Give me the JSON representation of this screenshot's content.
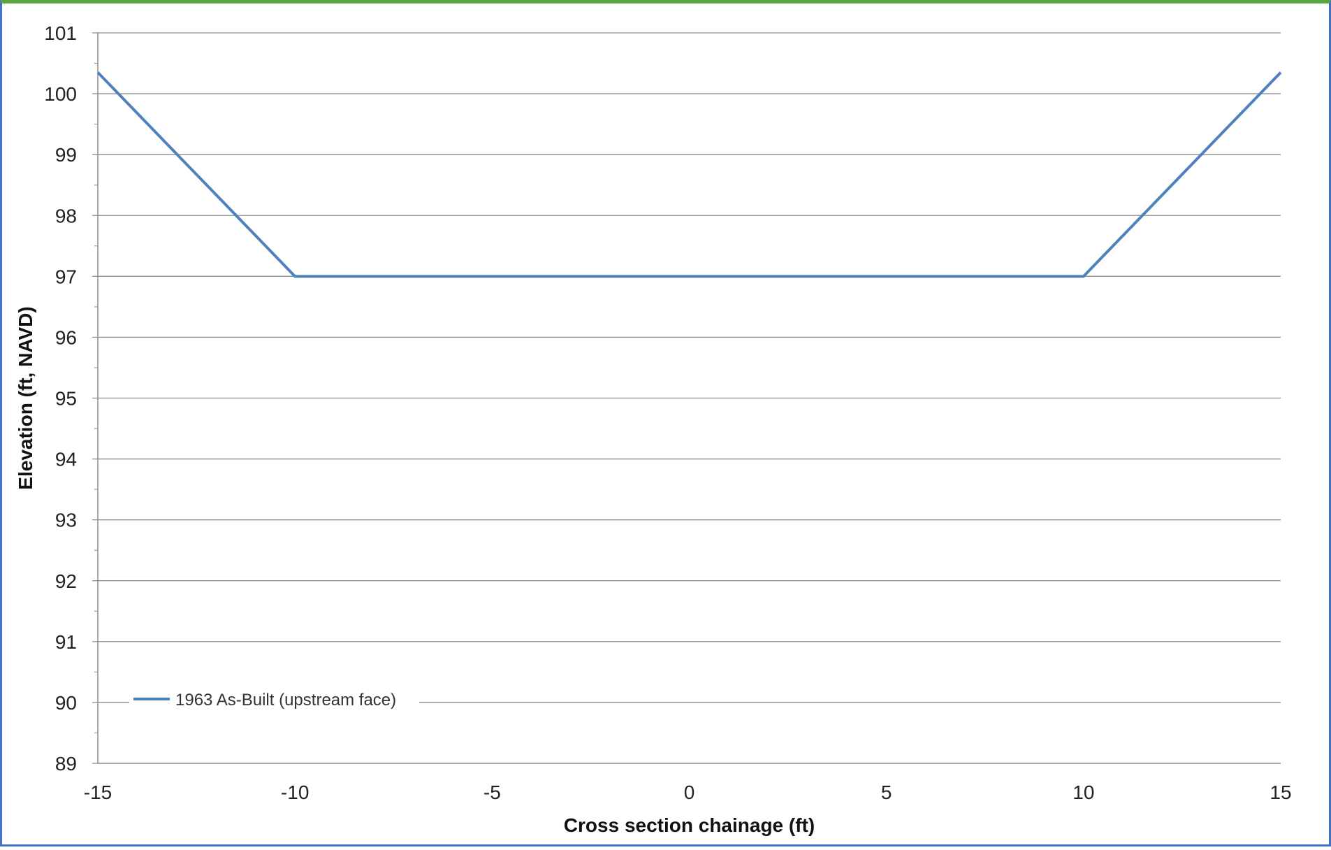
{
  "chart_data": {
    "type": "line",
    "title": "",
    "xlabel": "Cross section chainage (ft)",
    "ylabel": "Elevation (ft, NAVD)",
    "xlim": [
      -15,
      15
    ],
    "ylim": [
      89,
      101
    ],
    "x_ticks": [
      "-15",
      "-10",
      "-5",
      "0",
      "5",
      "10",
      "15"
    ],
    "y_ticks": [
      "101",
      "100",
      "99",
      "98",
      "97",
      "96",
      "95",
      "94",
      "93",
      "92",
      "91",
      "90",
      "89"
    ],
    "grid": true,
    "legend": "bottom-left",
    "series": [
      {
        "name": "1963 As-Built (upstream face)",
        "color": "#4f81bd",
        "x": [
          -15,
          -10,
          10,
          15
        ],
        "y": [
          100.35,
          97.0,
          97.0,
          100.35
        ]
      }
    ]
  }
}
